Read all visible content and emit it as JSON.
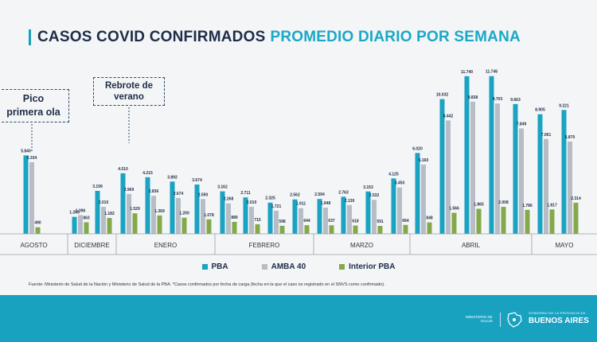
{
  "title": {
    "part1": "CASOS COVID CONFIRMADOS",
    "part2": "PROMEDIO DIARIO POR SEMANA"
  },
  "callouts": {
    "pico": {
      "line1": "Pico",
      "line2": "primera ola"
    },
    "rebrote": {
      "line1": "Rebrote de",
      "line2": "verano"
    }
  },
  "colors": {
    "pba": "#1aa3c3",
    "amba": "#b8bcc4",
    "interior": "#84a94a"
  },
  "source": "Fuente: Ministerio de Salud de la Nación y Ministerio de Salud de la PBA. *Casos confirmados por fecha de carga (fecha en la que el caso es registrado en el SNVS como confirmado).",
  "footer": {
    "ministerio": [
      "MINISTERIO DE",
      "SALUD"
    ],
    "gobierno": "GOBIERNO DE LA PROVINCIA DE",
    "buenos_aires": "BUENOS AIRES"
  },
  "chart_data": {
    "type": "bar",
    "title": "CASOS COVID CONFIRMADOS PROMEDIO DIARIO POR SEMANA",
    "month_groups": [
      {
        "label": "AGOSTO",
        "count": 1
      },
      {
        "label": "DICIEMBRE",
        "count": 2
      },
      {
        "label": "ENERO",
        "count": 4
      },
      {
        "label": "FEBRERO",
        "count": 4
      },
      {
        "label": "MARZO",
        "count": 4
      },
      {
        "label": "ABRIL",
        "count": 5
      },
      {
        "label": "MAYO",
        "count": 2
      }
    ],
    "series": [
      {
        "name": "PBA",
        "values": [
          5840,
          1265,
          3199,
          4510,
          4215,
          3892,
          3674,
          3162,
          2711,
          2325,
          2562,
          2594,
          2763,
          3153,
          4125,
          6020,
          10032,
          11740,
          11746,
          9663,
          8905,
          9221
        ],
        "labels": [
          "5.840",
          "1.265",
          "3.199",
          "4.510",
          "4.215",
          "3.892",
          "3.674",
          "3.162",
          "2.711",
          "2.325",
          "2.562",
          "2.594",
          "2.763",
          "3.153",
          "4.125",
          "6.020",
          "10.032",
          "11.740",
          "11.746",
          "9.663",
          "8.905",
          "9.221"
        ]
      },
      {
        "name": "AMBA 40",
        "values": [
          5334,
          1396,
          2010,
          2969,
          2836,
          2674,
          2590,
          2268,
          2010,
          1721,
          1911,
          1948,
          2139,
          2532,
          3450,
          5160,
          8442,
          9838,
          9703,
          7849,
          7061,
          6870
        ],
        "labels": [
          "5.334",
          "1.396",
          "2.010",
          "2.969",
          "2.836",
          "2.674",
          "2.590",
          "2.268",
          "2.010",
          "1.721",
          "1.911",
          "1.948",
          "2.139",
          "2.532",
          "3.450",
          "5.160",
          "8.442",
          "9.838",
          "9.703",
          "7.849",
          "7.061",
          "6.870"
        ]
      },
      {
        "name": "Interior PBA",
        "values": [
          490,
          863,
          1182,
          1529,
          1369,
          1200,
          1078,
          889,
          715,
          598,
          644,
          637,
          618,
          591,
          664,
          848,
          1566,
          1865,
          2008,
          1786,
          1817,
          2314
        ],
        "labels": [
          "490",
          "863",
          "1.182",
          "1.529",
          "1.369",
          "1.200",
          "1.078",
          "889",
          "715",
          "598",
          "644",
          "637",
          "618",
          "591",
          "664",
          "848",
          "1.566",
          "1.865",
          "2.008",
          "1.786",
          "1.817",
          "2.314"
        ]
      }
    ],
    "ylim": [
      0,
      12200
    ],
    "grid": false,
    "legend_position": "bottom-center"
  }
}
